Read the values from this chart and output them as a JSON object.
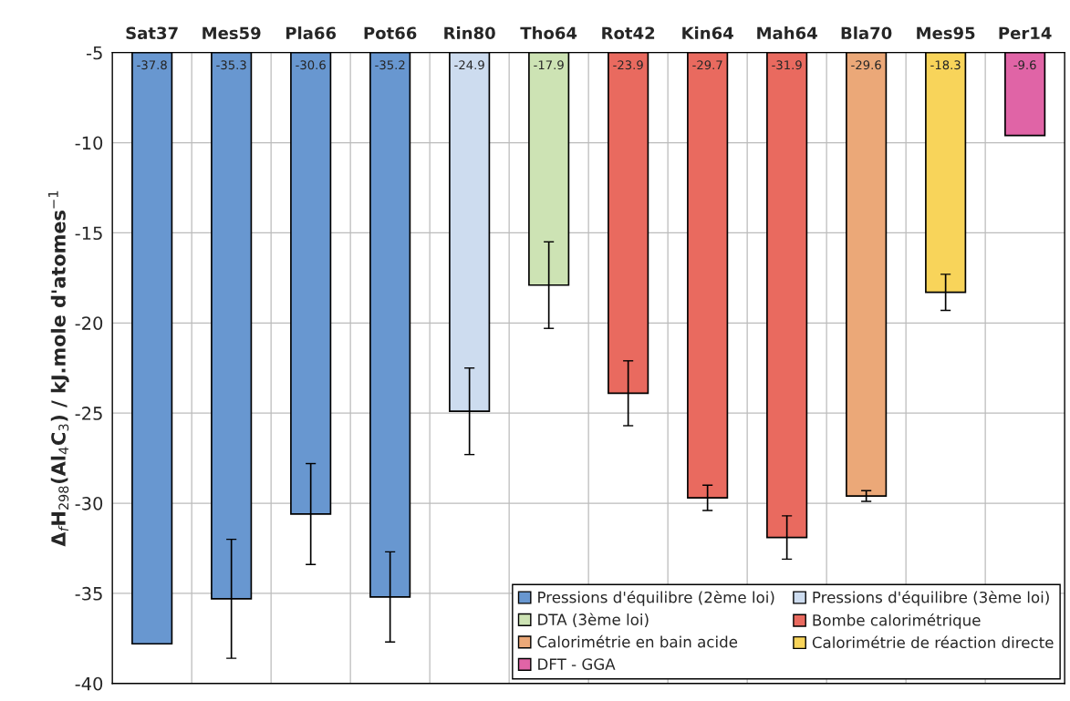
{
  "chart_data": {
    "type": "bar",
    "ylabel": "Δ$_{f}$H$_{298}$(Al$_{4}$C$_{3}$) / kJ.mole d'atomes$^{−1}$",
    "categories": [
      "Sat37",
      "Mes59",
      "Pla66",
      "Pot66",
      "Rin80",
      "Tho64",
      "Rot42",
      "Kin64",
      "Mah64",
      "Bla70",
      "Mes95",
      "Per14"
    ],
    "series": [
      {
        "name": "Pressions d'équilibre (2ème loi)",
        "color": "#6897d0",
        "values": [
          -37.8,
          -35.3,
          -30.6,
          -35.2,
          null,
          null,
          null,
          null,
          null,
          null,
          null,
          null
        ],
        "errors": [
          null,
          3.3,
          2.8,
          2.5,
          null,
          null,
          null,
          null,
          null,
          null,
          null,
          null
        ]
      },
      {
        "name": "Pressions d'équilibre (3ème loi)",
        "color": "#cddcef",
        "values": [
          null,
          null,
          null,
          null,
          -24.9,
          null,
          null,
          null,
          null,
          null,
          null,
          null
        ],
        "errors": [
          null,
          null,
          null,
          null,
          2.4,
          null,
          null,
          null,
          null,
          null,
          null,
          null
        ]
      },
      {
        "name": "DTA (3ème loi)",
        "color": "#cde3b4",
        "values": [
          null,
          null,
          null,
          null,
          null,
          -17.9,
          null,
          null,
          null,
          null,
          null,
          null
        ],
        "errors": [
          null,
          null,
          null,
          null,
          null,
          2.4,
          null,
          null,
          null,
          null,
          null,
          null
        ]
      },
      {
        "name": "Bombe calorimétrique",
        "color": "#e96a5f",
        "values": [
          null,
          null,
          null,
          null,
          null,
          null,
          -23.9,
          -29.7,
          -31.9,
          null,
          null,
          null
        ],
        "errors": [
          null,
          null,
          null,
          null,
          null,
          null,
          1.8,
          0.7,
          1.2,
          null,
          null,
          null
        ]
      },
      {
        "name": "Calorimétrie en bain acide",
        "color": "#eba878",
        "values": [
          null,
          null,
          null,
          null,
          null,
          null,
          null,
          null,
          null,
          -29.6,
          null,
          null
        ],
        "errors": [
          null,
          null,
          null,
          null,
          null,
          null,
          null,
          null,
          null,
          0.3,
          null,
          null
        ]
      },
      {
        "name": "Calorimétrie de réaction directe",
        "color": "#f8d45a",
        "values": [
          null,
          null,
          null,
          null,
          null,
          null,
          null,
          null,
          null,
          null,
          -18.3,
          null
        ],
        "errors": [
          null,
          null,
          null,
          null,
          null,
          null,
          null,
          null,
          null,
          null,
          1.0,
          null
        ]
      },
      {
        "name": "DFT - GGA",
        "color": "#e064a6",
        "values": [
          null,
          null,
          null,
          null,
          null,
          null,
          null,
          null,
          null,
          null,
          null,
          -9.6
        ]
      }
    ],
    "ylim": [
      -40,
      -5
    ],
    "yticks": [
      -5,
      -10,
      -15,
      -20,
      -25,
      -30,
      -35,
      -40
    ],
    "grid": true,
    "legend": "bottom right",
    "data_labels": true
  }
}
